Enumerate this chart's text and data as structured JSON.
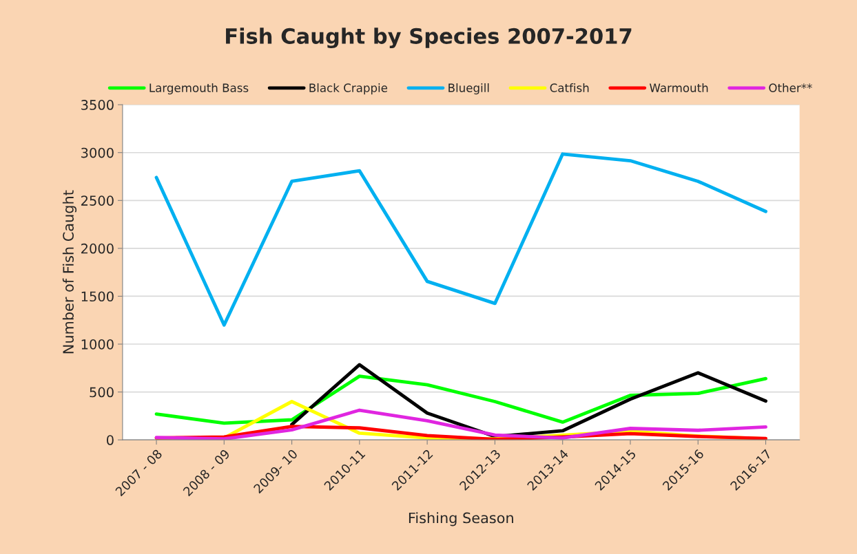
{
  "chart_data": {
    "type": "line",
    "title": "Fish Caught by Species 2007-2017",
    "xlabel": "Fishing Season",
    "ylabel": "Number of Fish Caught",
    "categories": [
      "2007 - 08",
      "2008 - 09",
      "2009- 10",
      "2010-11",
      "2011-12",
      "2012-13",
      "2013-14",
      "2014-15",
      "2015-16",
      "2016-17"
    ],
    "series": [
      {
        "name": "Largemouth Bass",
        "color": "#00ff00",
        "values": [
          270,
          175,
          210,
          665,
          575,
          400,
          185,
          465,
          485,
          640
        ]
      },
      {
        "name": "Black Crappie",
        "color": "#000000",
        "values": [
          null,
          null,
          160,
          785,
          280,
          35,
          95,
          425,
          700,
          405
        ]
      },
      {
        "name": "Bluegill",
        "color": "#00b0f0",
        "values": [
          2740,
          1200,
          2700,
          2810,
          1655,
          1425,
          2985,
          2915,
          2700,
          2385
        ]
      },
      {
        "name": "Catfish",
        "color": "#ffff00",
        "values": [
          20,
          20,
          400,
          70,
          20,
          10,
          null,
          90,
          40,
          10
        ]
      },
      {
        "name": "Warmouth",
        "color": "#ff0000",
        "values": [
          20,
          30,
          140,
          125,
          45,
          5,
          30,
          65,
          35,
          15
        ]
      },
      {
        "name": "Other**",
        "color": "#e026e0",
        "values": [
          25,
          10,
          105,
          310,
          200,
          50,
          20,
          120,
          100,
          135
        ]
      }
    ],
    "ylim": [
      0,
      3500
    ],
    "yticks": [
      0,
      500,
      1000,
      1500,
      2000,
      2500,
      3000,
      3500
    ],
    "grid": "y",
    "legend": "top",
    "marker": "none",
    "line_style": "solid"
  }
}
